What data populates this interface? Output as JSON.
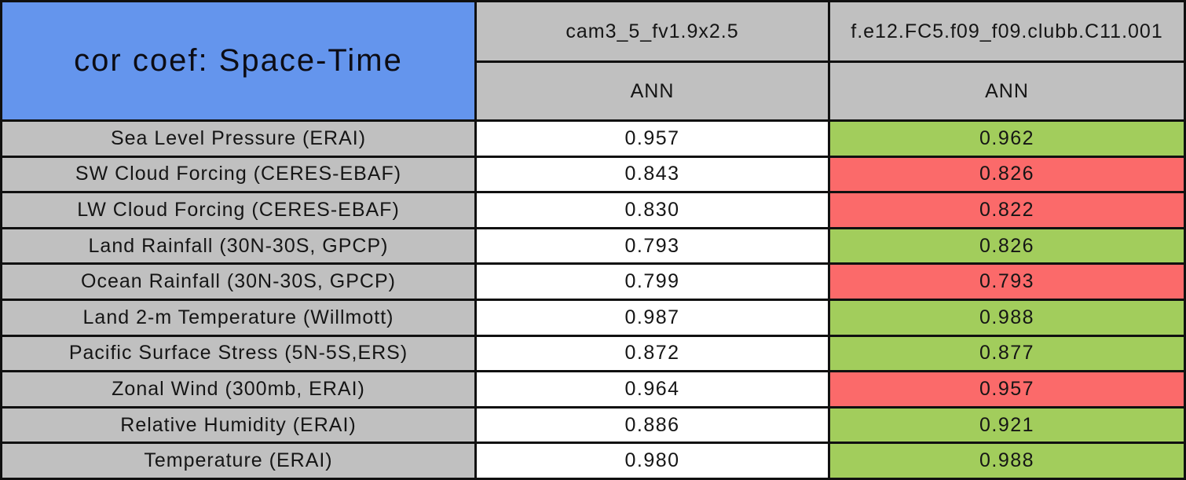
{
  "title": "cor coef: Space-Time",
  "columns": [
    {
      "model": "cam3_5_fv1.9x2.5",
      "season": "ANN"
    },
    {
      "model": "f.e12.FC5.f09_f09.clubb.C11.001",
      "season": "ANN"
    }
  ],
  "rows": [
    {
      "label": "Sea Level Pressure (ERAI)",
      "model1": "0.957",
      "model2": "0.962",
      "model2_status": "better"
    },
    {
      "label": "SW Cloud Forcing (CERES-EBAF)",
      "model1": "0.843",
      "model2": "0.826",
      "model2_status": "worse"
    },
    {
      "label": "LW Cloud Forcing (CERES-EBAF)",
      "model1": "0.830",
      "model2": "0.822",
      "model2_status": "worse"
    },
    {
      "label": "Land Rainfall (30N-30S, GPCP)",
      "model1": "0.793",
      "model2": "0.826",
      "model2_status": "better"
    },
    {
      "label": "Ocean Rainfall (30N-30S, GPCP)",
      "model1": "0.799",
      "model2": "0.793",
      "model2_status": "worse"
    },
    {
      "label": "Land 2-m Temperature (Willmott)",
      "model1": "0.987",
      "model2": "0.988",
      "model2_status": "better"
    },
    {
      "label": "Pacific Surface Stress (5N-5S,ERS)",
      "model1": "0.872",
      "model2": "0.877",
      "model2_status": "better"
    },
    {
      "label": "Zonal Wind (300mb, ERAI)",
      "model1": "0.964",
      "model2": "0.957",
      "model2_status": "worse"
    },
    {
      "label": "Relative Humidity (ERAI)",
      "model1": "0.886",
      "model2": "0.921",
      "model2_status": "better"
    },
    {
      "label": "Temperature (ERAI)",
      "model1": "0.980",
      "model2": "0.988",
      "model2_status": "better"
    }
  ],
  "colors": {
    "blue": "#6495ED",
    "gray": "#C0C0C0",
    "white": "#FFFFFF",
    "green": "#A2CD5C",
    "red": "#FB6A6A",
    "border": "#101010"
  },
  "chart_data": {
    "type": "table",
    "title": "cor coef: Space-Time",
    "row_labels": [
      "Sea Level Pressure (ERAI)",
      "SW Cloud Forcing (CERES-EBAF)",
      "LW Cloud Forcing (CERES-EBAF)",
      "Land Rainfall (30N-30S, GPCP)",
      "Ocean Rainfall (30N-30S, GPCP)",
      "Land 2-m Temperature (Willmott)",
      "Pacific Surface Stress (5N-5S,ERS)",
      "Zonal Wind (300mb, ERAI)",
      "Relative Humidity (ERAI)",
      "Temperature (ERAI)"
    ],
    "series": [
      {
        "name": "cam3_5_fv1.9x2.5",
        "season": "ANN",
        "values": [
          0.957,
          0.843,
          0.83,
          0.793,
          0.799,
          0.987,
          0.872,
          0.964,
          0.886,
          0.98
        ]
      },
      {
        "name": "f.e12.FC5.f09_f09.clubb.C11.001",
        "season": "ANN",
        "values": [
          0.962,
          0.826,
          0.822,
          0.826,
          0.793,
          0.988,
          0.877,
          0.957,
          0.921,
          0.988
        ],
        "cell_status": [
          "better",
          "worse",
          "worse",
          "better",
          "worse",
          "better",
          "better",
          "worse",
          "better",
          "better"
        ]
      }
    ],
    "legend_hint": "green = improved vs first model, red = degraded"
  }
}
